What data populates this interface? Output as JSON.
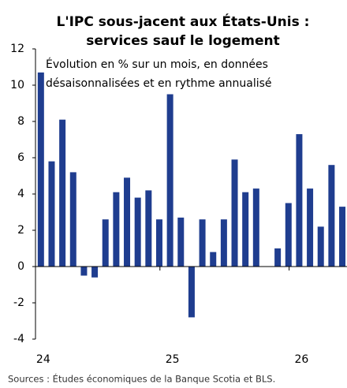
{
  "chart_data": {
    "type": "bar",
    "title": [
      "L'IPC sous-jacent aux États-Unis :",
      "services sauf le logement"
    ],
    "subtitle": [
      "Évolution en % sur un mois, en données",
      "désaisonnalisées et en rythme annualisé"
    ],
    "source": "Sources : Études économiques de la Banque Scotia et BLS.",
    "categories": [
      "24",
      null,
      null,
      null,
      null,
      null,
      null,
      null,
      null,
      null,
      null,
      null,
      "25",
      null,
      null,
      null,
      null,
      null,
      null,
      null,
      null,
      null,
      null,
      null,
      "26",
      null,
      null,
      null,
      null
    ],
    "values": [
      10.7,
      5.8,
      8.1,
      5.2,
      -0.5,
      -0.6,
      2.6,
      4.1,
      4.9,
      3.8,
      4.2,
      2.6,
      9.5,
      2.7,
      -2.8,
      2.6,
      0.8,
      2.6,
      5.9,
      4.1,
      4.3,
      null,
      1.0,
      3.5,
      7.3,
      4.3,
      2.2,
      5.6,
      3.3
    ],
    "color": "#1f3d8f",
    "ylim": [
      -4,
      12
    ],
    "yticks": [
      -4,
      -2,
      0,
      2,
      4,
      6,
      8,
      10,
      12
    ]
  }
}
